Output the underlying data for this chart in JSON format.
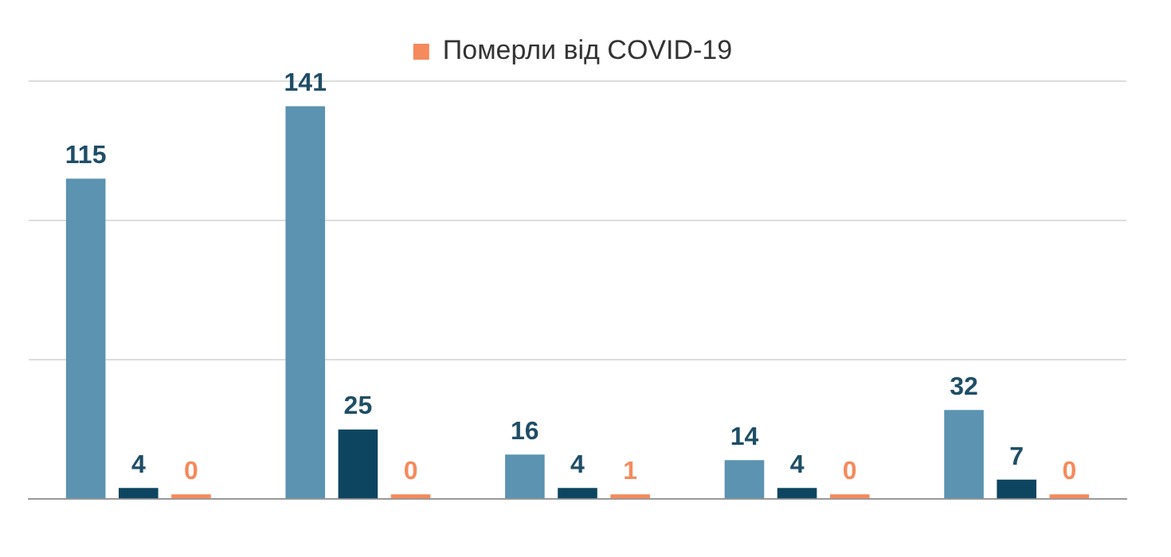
{
  "chart_data": {
    "type": "bar",
    "categories": [
      null,
      null,
      null,
      null,
      null
    ],
    "series": [
      {
        "color": "#5b93b0",
        "values": [
          115,
          141,
          16,
          14,
          32
        ]
      },
      {
        "color": "#0d4560",
        "values": [
          4,
          25,
          4,
          4,
          7
        ]
      },
      {
        "name": "Померли від COVID-19",
        "color": "#f58a5c",
        "values": [
          0,
          0,
          1,
          0,
          0
        ]
      }
    ],
    "ylim": [
      0,
      150
    ],
    "yticks": [
      {
        "value": 0,
        "label": null
      },
      {
        "value": 50,
        "label": null
      },
      {
        "value": 100,
        "label": null
      },
      {
        "value": 150,
        "label": null
      }
    ],
    "grid": "y",
    "legend": "top",
    "data_labels": true
  }
}
